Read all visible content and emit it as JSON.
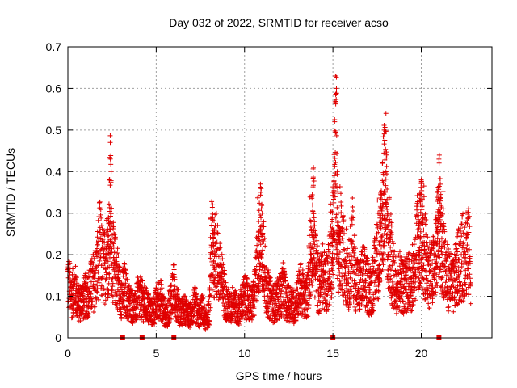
{
  "chart_data": {
    "type": "scatter",
    "title": "Day 032 of 2022, SRMTID for receiver acso",
    "xlabel": "GPS time / hours",
    "ylabel": "SRMTID / TECUs",
    "xlim": [
      0,
      24
    ],
    "ylim": [
      0,
      0.7
    ],
    "xticks": [
      0,
      5,
      10,
      15,
      20
    ],
    "yticks": [
      0,
      0.1,
      0.2,
      0.3,
      0.4,
      0.5,
      0.6,
      0.7
    ],
    "grid": true,
    "series_color": "#e00000",
    "marker": "plus",
    "series": [
      {
        "name": "SRMTID",
        "note": "Dense cloud of points, mostly 0.03-0.2 TECU, with spikes",
        "x": [
          0.0,
          0.2,
          0.4,
          0.6,
          0.8,
          1.0,
          1.2,
          1.4,
          1.6,
          1.8,
          2.0,
          2.1,
          2.2,
          2.3,
          2.35,
          2.4,
          2.45,
          2.5,
          2.6,
          2.8,
          3.0,
          3.2,
          3.4,
          3.6,
          3.8,
          4.0,
          4.2,
          4.4,
          4.6,
          4.8,
          5.0,
          5.2,
          5.4,
          5.6,
          5.8,
          6.0,
          6.2,
          6.4,
          6.6,
          6.8,
          7.0,
          7.2,
          7.4,
          7.6,
          7.8,
          8.0,
          8.2,
          8.4,
          8.6,
          8.8,
          9.0,
          9.2,
          9.4,
          9.6,
          9.8,
          10.0,
          10.2,
          10.4,
          10.6,
          10.8,
          10.9,
          11.0,
          11.2,
          11.4,
          11.6,
          11.8,
          12.0,
          12.2,
          12.4,
          12.6,
          12.8,
          13.0,
          13.2,
          13.4,
          13.6,
          13.8,
          13.9,
          14.0,
          14.2,
          14.4,
          14.6,
          14.8,
          15.0,
          15.1,
          15.15,
          15.2,
          15.25,
          15.3,
          15.5,
          15.7,
          15.9,
          16.1,
          16.3,
          16.5,
          16.7,
          16.9,
          17.1,
          17.3,
          17.5,
          17.7,
          17.8,
          17.9,
          18.0,
          18.1,
          18.2,
          18.4,
          18.6,
          18.8,
          19.0,
          19.2,
          19.4,
          19.6,
          19.8,
          19.9,
          20.0,
          20.2,
          20.4,
          20.6,
          20.8,
          20.9,
          21.0,
          21.2,
          21.4,
          21.6,
          21.8,
          22.0,
          22.2,
          22.4,
          22.6,
          22.8
        ],
        "y": [
          0.14,
          0.1,
          0.12,
          0.08,
          0.09,
          0.1,
          0.11,
          0.13,
          0.15,
          0.22,
          0.16,
          0.18,
          0.2,
          0.29,
          0.38,
          0.47,
          0.4,
          0.2,
          0.17,
          0.15,
          0.1,
          0.12,
          0.09,
          0.08,
          0.07,
          0.1,
          0.09,
          0.08,
          0.07,
          0.06,
          0.08,
          0.1,
          0.07,
          0.05,
          0.09,
          0.12,
          0.08,
          0.06,
          0.07,
          0.05,
          0.06,
          0.08,
          0.05,
          0.07,
          0.04,
          0.06,
          0.32,
          0.2,
          0.15,
          0.12,
          0.08,
          0.07,
          0.09,
          0.06,
          0.08,
          0.1,
          0.09,
          0.08,
          0.11,
          0.28,
          0.37,
          0.3,
          0.12,
          0.1,
          0.08,
          0.09,
          0.1,
          0.12,
          0.08,
          0.09,
          0.07,
          0.1,
          0.12,
          0.09,
          0.11,
          0.34,
          0.41,
          0.19,
          0.12,
          0.15,
          0.13,
          0.16,
          0.35,
          0.52,
          0.63,
          0.6,
          0.4,
          0.3,
          0.2,
          0.18,
          0.15,
          0.22,
          0.14,
          0.12,
          0.15,
          0.13,
          0.11,
          0.14,
          0.2,
          0.35,
          0.42,
          0.5,
          0.54,
          0.3,
          0.22,
          0.15,
          0.13,
          0.14,
          0.12,
          0.14,
          0.13,
          0.16,
          0.25,
          0.33,
          0.38,
          0.2,
          0.16,
          0.15,
          0.18,
          0.35,
          0.43,
          0.25,
          0.15,
          0.14,
          0.12,
          0.16,
          0.18,
          0.2,
          0.22,
          0.17
        ]
      }
    ],
    "gap_markers_x": [
      3.1,
      4.2,
      6.0,
      15.0,
      21.0
    ]
  }
}
